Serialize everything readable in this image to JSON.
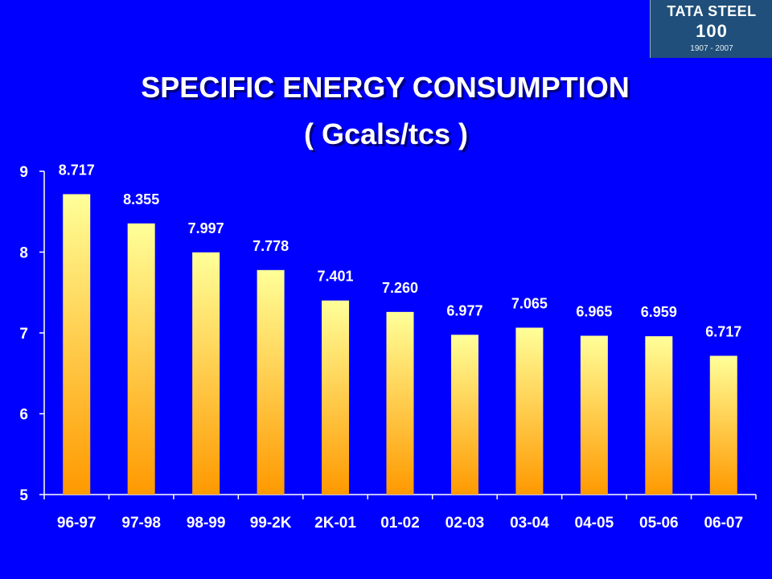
{
  "header": {
    "title": "SPECIFIC ENERGY CONSUMPTION",
    "subtitle": "( Gcals/tcs )"
  },
  "logo": {
    "name": "TATA STEEL",
    "hundred": "100",
    "years": "1907 - 2007"
  },
  "colors": {
    "background": "#0000ff",
    "bar_top": "#ffff99",
    "bar_bottom": "#ff9900",
    "text": "#ffffff",
    "value_text": "#ffffff"
  },
  "chart_data": {
    "type": "bar",
    "title": "SPECIFIC ENERGY CONSUMPTION ( Gcals/tcs )",
    "categories": [
      "96-97",
      "97-98",
      "98-99",
      "99-2K",
      "2K-01",
      "01-02",
      "02-03",
      "03-04",
      "04-05",
      "05-06",
      "06-07"
    ],
    "values": [
      8.717,
      8.355,
      7.997,
      7.778,
      7.401,
      7.26,
      6.977,
      7.065,
      6.965,
      6.959,
      6.717
    ],
    "value_labels": [
      "8.717",
      "8.355",
      "7.997",
      "7.778",
      "7.401",
      "7.260",
      "6.977",
      "7.065",
      "6.965",
      "6.959",
      "6.717"
    ],
    "ylim": [
      5,
      9
    ],
    "yticks": [
      5,
      6,
      7,
      8,
      9
    ],
    "xlabel": "",
    "ylabel": "",
    "grid": false,
    "legend": "none"
  }
}
